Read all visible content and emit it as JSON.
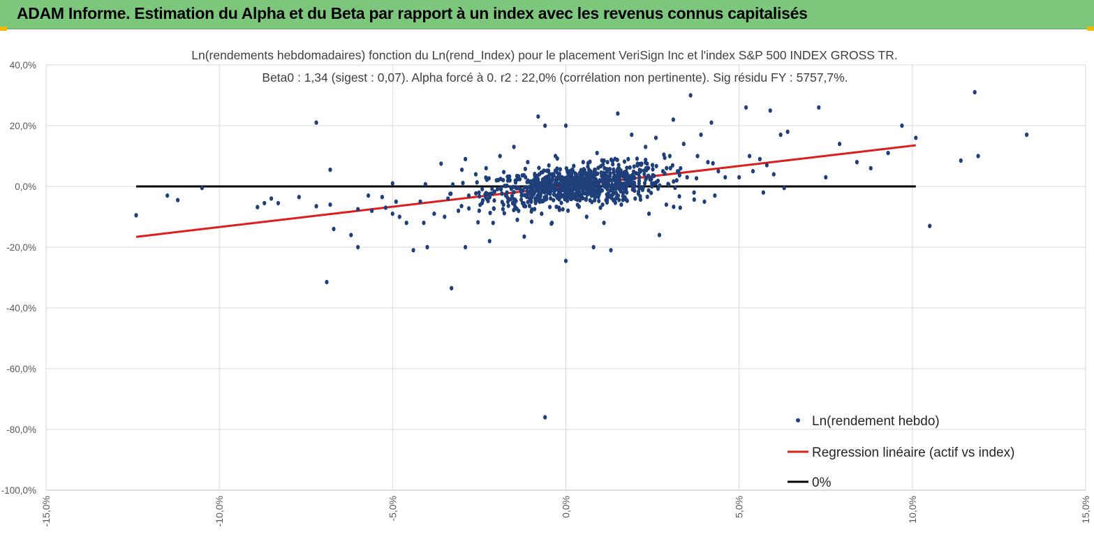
{
  "header": {
    "title": "ADAM Informe. Estimation du Alpha et du Beta par rapport à un index avec les revenus connus capitalisés",
    "bar_color": "#7dc77d",
    "corner_color": "#f2b800"
  },
  "chart_data": {
    "type": "scatter",
    "title_line1": "Ln(rendements hebdomadaires) fonction du Ln(rend_Index) pour le placement VeriSign Inc et l'index S&P 500 INDEX GROSS TR.",
    "title_line2": "Beta0 : 1,34 (sigest : 0,07). Alpha forcé à 0. r2 : 22,0% (corrélation non pertinente). Sig résidu FY : 5757,7%.",
    "xlim": [
      -0.15,
      0.15
    ],
    "ylim": [
      -1.0,
      0.4
    ],
    "x_ticks": [
      -0.15,
      -0.1,
      -0.05,
      0.0,
      0.05,
      0.1,
      0.15
    ],
    "x_tick_labels": [
      "-15,0%",
      "-10,0%",
      "-5,0%",
      "0,0%",
      "5,0%",
      "10,0%",
      "15,0%"
    ],
    "y_ticks": [
      0.4,
      0.2,
      0.0,
      -0.2,
      -0.4,
      -0.6,
      -0.8,
      -1.0
    ],
    "y_tick_labels": [
      "40,0%",
      "20,0%",
      "0,0%",
      "-20,0%",
      "-40,0%",
      "-60,0%",
      "-80,0%",
      "-100,0%"
    ],
    "grid": true,
    "legend_position": "bottom-right",
    "series": [
      {
        "name": "Ln(rendement hebdo)",
        "kind": "scatter",
        "color": "#1f3f7a",
        "points": [
          [
            -0.124,
            -0.095
          ],
          [
            -0.115,
            -0.03
          ],
          [
            -0.112,
            -0.045
          ],
          [
            -0.105,
            -0.005
          ],
          [
            -0.089,
            -0.068
          ],
          [
            -0.087,
            -0.055
          ],
          [
            -0.085,
            -0.04
          ],
          [
            -0.083,
            -0.055
          ],
          [
            -0.077,
            -0.035
          ],
          [
            -0.072,
            -0.065
          ],
          [
            -0.072,
            0.21
          ],
          [
            -0.068,
            0.055
          ],
          [
            -0.068,
            -0.06
          ],
          [
            -0.067,
            -0.14
          ],
          [
            -0.069,
            -0.315
          ],
          [
            -0.062,
            -0.16
          ],
          [
            -0.06,
            -0.2
          ],
          [
            -0.06,
            -0.075
          ],
          [
            -0.057,
            -0.03
          ],
          [
            -0.056,
            -0.08
          ],
          [
            -0.053,
            -0.035
          ],
          [
            -0.052,
            -0.07
          ],
          [
            -0.05,
            -0.09
          ],
          [
            -0.049,
            -0.05
          ],
          [
            -0.05,
            0.01
          ],
          [
            -0.048,
            -0.1
          ],
          [
            -0.046,
            -0.12
          ],
          [
            -0.044,
            -0.21
          ],
          [
            -0.042,
            -0.05
          ],
          [
            -0.041,
            -0.12
          ],
          [
            -0.04,
            -0.2
          ],
          [
            -0.038,
            -0.09
          ],
          [
            -0.036,
            0.075
          ],
          [
            -0.035,
            -0.1
          ],
          [
            -0.034,
            -0.04
          ],
          [
            -0.033,
            -0.335
          ],
          [
            -0.031,
            -0.08
          ],
          [
            -0.03,
            0.055
          ],
          [
            -0.029,
            0.09
          ],
          [
            -0.029,
            -0.2
          ],
          [
            -0.028,
            -0.03
          ],
          [
            -0.026,
            0.04
          ],
          [
            -0.025,
            -0.08
          ],
          [
            -0.023,
            0.06
          ],
          [
            -0.022,
            -0.18
          ],
          [
            -0.021,
            -0.12
          ],
          [
            -0.02,
            0.02
          ],
          [
            -0.019,
            0.1
          ],
          [
            -0.018,
            -0.06
          ],
          [
            -0.017,
            -0.02
          ],
          [
            -0.015,
            0.13
          ],
          [
            -0.014,
            -0.11
          ],
          [
            -0.012,
            -0.165
          ],
          [
            -0.011,
            0.08
          ],
          [
            -0.01,
            -0.05
          ],
          [
            -0.008,
            0.23
          ],
          [
            -0.007,
            -0.09
          ],
          [
            -0.006,
            0.2
          ],
          [
            -0.005,
            0.05
          ],
          [
            -0.004,
            -0.12
          ],
          [
            -0.003,
            0.1
          ],
          [
            -0.002,
            -0.07
          ],
          [
            0.0,
            -0.245
          ],
          [
            0.0,
            0.2
          ],
          [
            0.002,
            0.05
          ],
          [
            0.003,
            -0.03
          ],
          [
            0.005,
            0.08
          ],
          [
            0.006,
            -0.1
          ],
          [
            0.008,
            -0.2
          ],
          [
            0.009,
            0.11
          ],
          [
            0.01,
            -0.07
          ],
          [
            0.011,
            -0.12
          ],
          [
            0.012,
            0.08
          ],
          [
            0.013,
            -0.21
          ],
          [
            0.014,
            0.035
          ],
          [
            0.015,
            0.24
          ],
          [
            0.016,
            -0.06
          ],
          [
            0.018,
            0.09
          ],
          [
            0.019,
            0.17
          ],
          [
            0.02,
            -0.04
          ],
          [
            0.021,
            0.04
          ],
          [
            0.023,
            0.13
          ],
          [
            0.024,
            -0.09
          ],
          [
            0.025,
            0.07
          ],
          [
            0.026,
            0.16
          ],
          [
            0.027,
            -0.16
          ],
          [
            0.028,
            0.05
          ],
          [
            0.029,
            -0.06
          ],
          [
            0.03,
            0.1
          ],
          [
            0.031,
            0.22
          ],
          [
            0.032,
            0.02
          ],
          [
            0.033,
            -0.07
          ],
          [
            0.034,
            0.14
          ],
          [
            0.035,
            0.03
          ],
          [
            0.036,
            0.3
          ],
          [
            0.037,
            -0.02
          ],
          [
            0.038,
            0.1
          ],
          [
            0.039,
            0.17
          ],
          [
            0.04,
            -0.05
          ],
          [
            0.041,
            0.08
          ],
          [
            0.042,
            0.21
          ],
          [
            0.043,
            -0.03
          ],
          [
            0.044,
            0.05
          ],
          [
            0.046,
            0.03
          ],
          [
            0.05,
            0.03
          ],
          [
            0.052,
            0.26
          ],
          [
            0.053,
            0.1
          ],
          [
            0.054,
            0.05
          ],
          [
            0.056,
            0.09
          ],
          [
            0.057,
            -0.02
          ],
          [
            0.058,
            0.07
          ],
          [
            0.059,
            0.25
          ],
          [
            0.06,
            0.04
          ],
          [
            0.062,
            0.17
          ],
          [
            0.063,
            -0.005
          ],
          [
            0.064,
            0.18
          ],
          [
            0.073,
            0.26
          ],
          [
            0.075,
            0.03
          ],
          [
            0.079,
            0.14
          ],
          [
            0.084,
            0.08
          ],
          [
            0.088,
            0.06
          ],
          [
            0.093,
            0.11
          ],
          [
            0.097,
            0.2
          ],
          [
            0.101,
            0.16
          ],
          [
            0.105,
            -0.13
          ],
          [
            0.114,
            0.085
          ],
          [
            0.118,
            0.31
          ],
          [
            0.119,
            0.1
          ],
          [
            0.133,
            0.17
          ],
          [
            -0.006,
            -0.76
          ]
        ],
        "cluster": {
          "center_x": 0.003,
          "center_y": 0.005,
          "approx_count": 900,
          "beta": 1.34
        }
      },
      {
        "name": "Regression linéaire (actif vs index)",
        "kind": "line",
        "color": "#e01b1b",
        "x": [
          -0.124,
          0.101
        ],
        "y": [
          -0.166,
          0.1355
        ]
      },
      {
        "name": "0%",
        "kind": "line",
        "color": "#000000",
        "x": [
          -0.124,
          0.101
        ],
        "y": [
          0.0,
          0.0
        ]
      }
    ]
  }
}
